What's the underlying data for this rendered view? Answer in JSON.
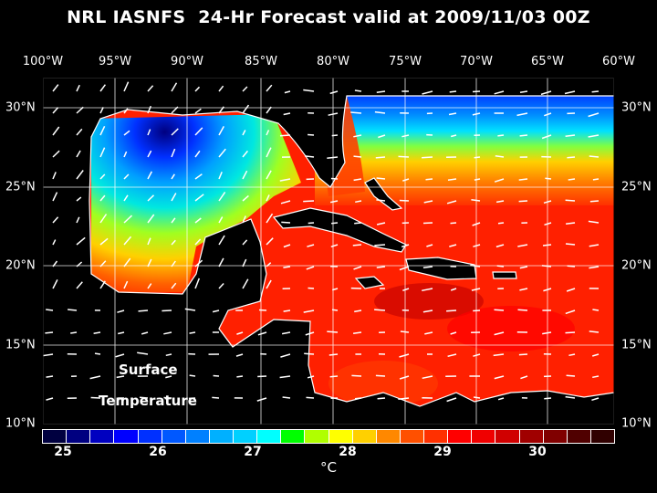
{
  "title": "NRL IASNFS  24-Hr Forecast valid at 2009/11/03 00Z",
  "lon_labels": [
    "100°W",
    "95°W",
    "90°W",
    "85°W",
    "80°W",
    "75°W",
    "70°W",
    "65°W",
    "60°W"
  ],
  "lat_labels": [
    "30°N",
    "25°N",
    "20°N",
    "15°N",
    "10°N"
  ],
  "map_labels": {
    "line1": "Surface",
    "line2": "Temperature"
  },
  "colorbar": {
    "unit": "°C",
    "ticks": [
      "25",
      "26",
      "27",
      "28",
      "29",
      "30"
    ],
    "range": [
      25,
      31
    ],
    "colors": [
      "#000040",
      "#000080",
      "#0000c0",
      "#0000ff",
      "#0030ff",
      "#0058ff",
      "#0080ff",
      "#00b0ff",
      "#00d0ff",
      "#00ffff",
      "#00ff00",
      "#b0ff00",
      "#ffff00",
      "#ffd000",
      "#ff8800",
      "#ff5000",
      "#ff3000",
      "#ff0000",
      "#f00000",
      "#d00000",
      "#a00000",
      "#800000",
      "#500000",
      "#300000"
    ]
  }
}
